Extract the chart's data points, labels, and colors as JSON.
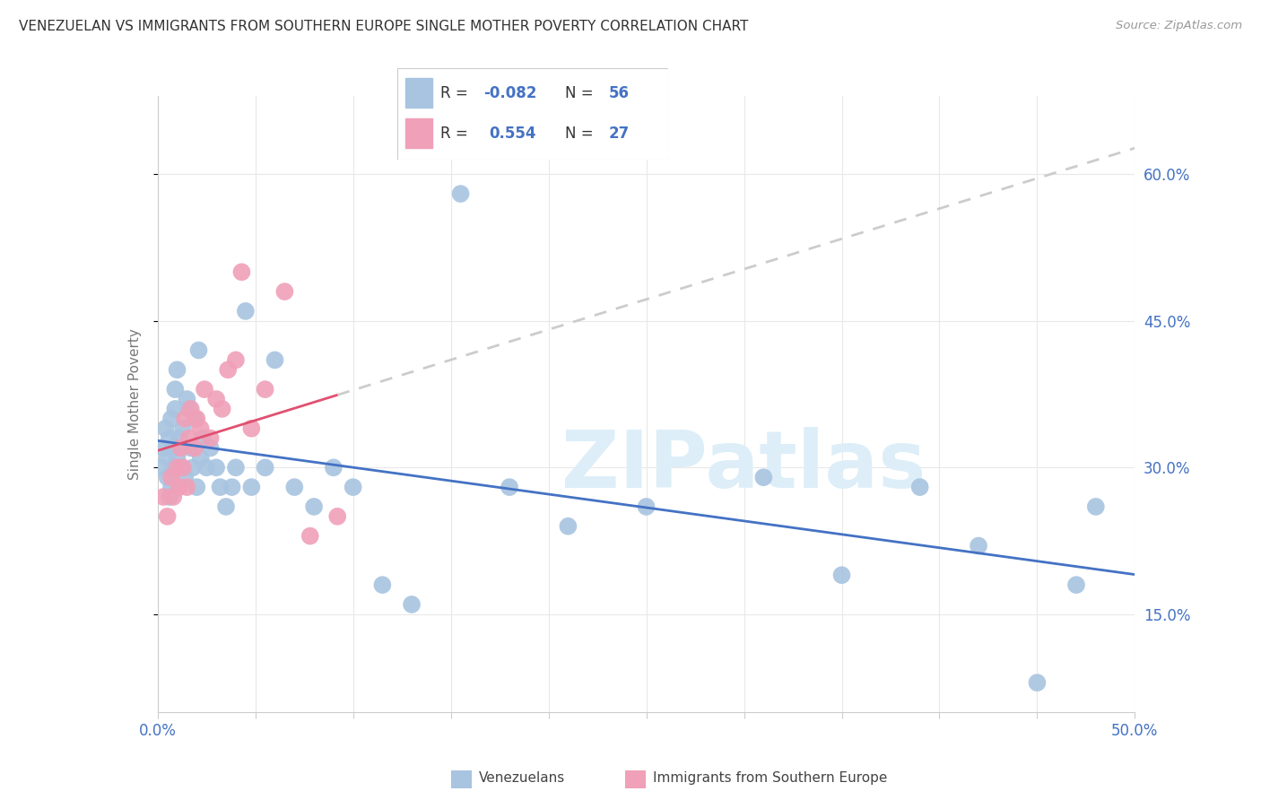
{
  "title": "VENEZUELAN VS IMMIGRANTS FROM SOUTHERN EUROPE SINGLE MOTHER POVERTY CORRELATION CHART",
  "source": "Source: ZipAtlas.com",
  "ylabel": "Single Mother Poverty",
  "xlim": [
    0.0,
    0.5
  ],
  "ylim": [
    0.05,
    0.68
  ],
  "y_ticks": [
    0.15,
    0.3,
    0.45,
    0.6
  ],
  "y_tick_labels": [
    "15.0%",
    "30.0%",
    "45.0%",
    "60.0%"
  ],
  "x_ticks": [
    0.0,
    0.05,
    0.1,
    0.15,
    0.2,
    0.25,
    0.3,
    0.35,
    0.4,
    0.45,
    0.5
  ],
  "venezuelan_R": -0.082,
  "venezuelan_N": 56,
  "southern_europe_R": 0.554,
  "southern_europe_N": 27,
  "venezuelan_color": "#a8c4e0",
  "southern_europe_color": "#f0a0b8",
  "venezuelan_line_color": "#4472c4",
  "southern_europe_line_color": "#e05070",
  "dashed_line_color": "#cccccc",
  "legend_R_label_color": "#333333",
  "legend_R_value_color": "#4472c4",
  "legend_N_value_color": "#4472c4",
  "axis_label_color": "#4472c4",
  "ylabel_color": "#777777",
  "watermark_text": "ZIPatlas",
  "watermark_color": "#ddeef8",
  "background_color": "#ffffff",
  "grid_color": "#e8e8e8",
  "bottom_legend_label1": "Venezuelans",
  "bottom_legend_label2": "Immigrants from Southern Europe"
}
